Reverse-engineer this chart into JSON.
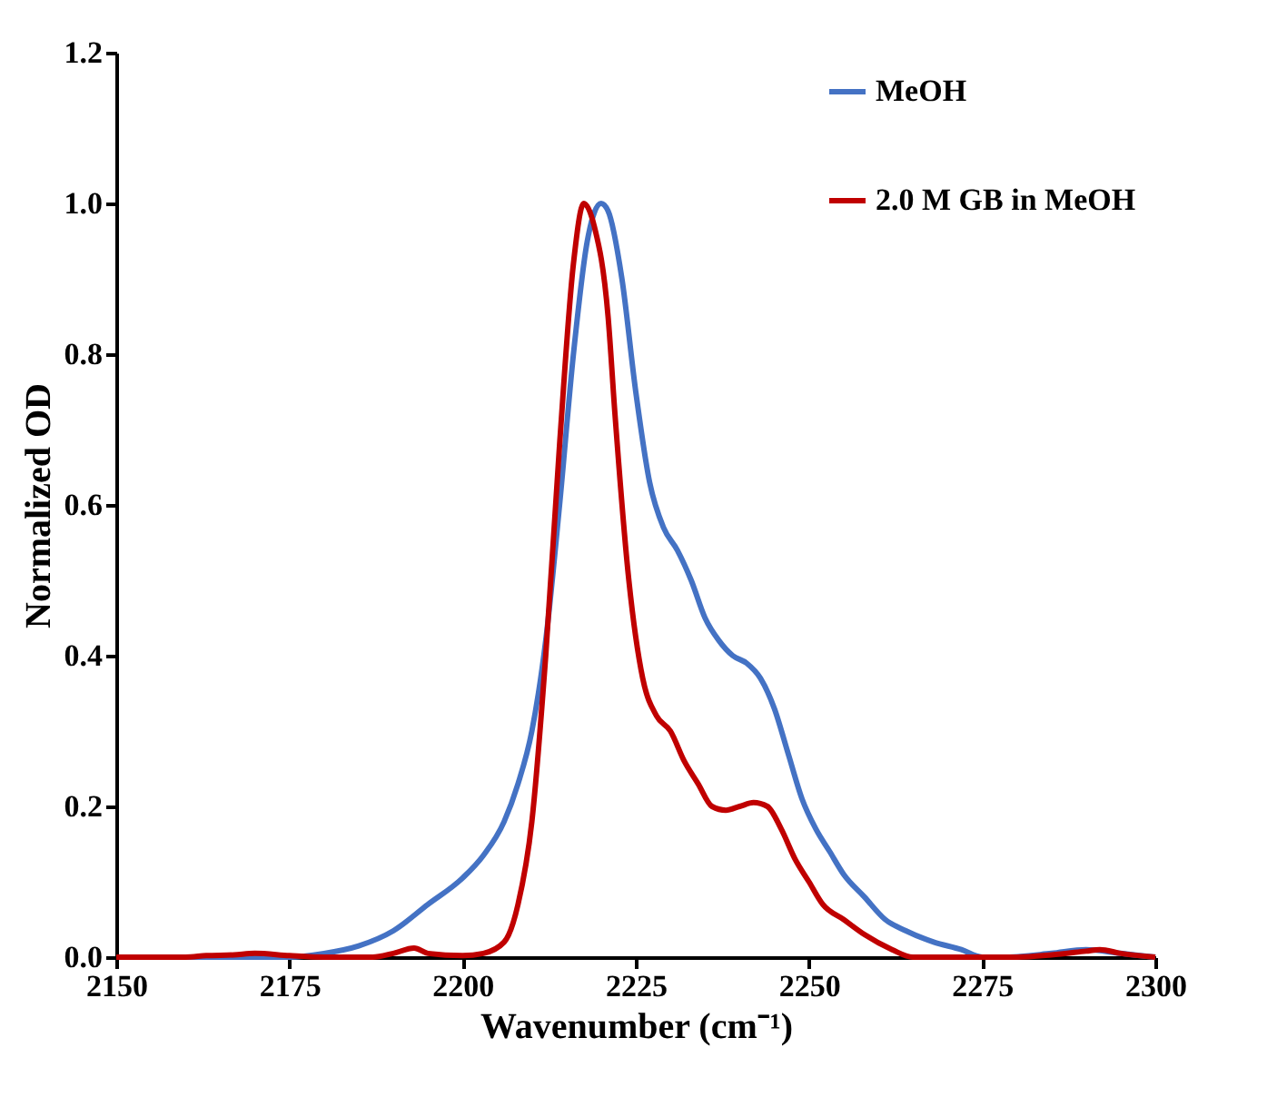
{
  "chart_data": {
    "type": "line",
    "xlabel": "Wavenumber (cm⁻¹)",
    "ylabel": "Normalized OD",
    "xlim": [
      2150,
      2300
    ],
    "xticks": [
      2150,
      2175,
      2200,
      2225,
      2250,
      2275,
      2300
    ],
    "ylim": [
      0,
      1.2
    ],
    "yticks": [
      {
        "value": 0,
        "label": "0.0"
      },
      0.2,
      0.4,
      0.6,
      0.8,
      {
        "value": 1,
        "label": "1.0"
      },
      1.2
    ],
    "grid": false,
    "legend": "top right",
    "line_style": "solid",
    "marker": "none",
    "series": [
      {
        "name": "MeOH",
        "color": "#4472c4",
        "x": [
          2150,
          2160,
          2170,
          2175,
          2180,
          2185,
          2190,
          2195,
          2200,
          2203,
          2206,
          2208,
          2210,
          2212,
          2214,
          2216,
          2218,
          2220,
          2221,
          2223,
          2225,
          2227,
          2229,
          2231,
          2233,
          2235,
          2237,
          2239,
          2241,
          2243,
          2245,
          2247,
          2249,
          2251,
          2253,
          2255,
          2258,
          2261,
          2264,
          2268,
          2272,
          2275,
          2278,
          2285,
          2290,
          2295,
          2300
        ],
        "values": [
          0,
          0,
          0,
          0,
          0.005,
          0.015,
          0.035,
          0.07,
          0.105,
          0.135,
          0.18,
          0.23,
          0.3,
          0.42,
          0.6,
          0.8,
          0.95,
          1.0,
          0.99,
          0.9,
          0.75,
          0.63,
          0.57,
          0.54,
          0.5,
          0.45,
          0.42,
          0.4,
          0.39,
          0.37,
          0.33,
          0.27,
          0.21,
          0.17,
          0.14,
          0.11,
          0.08,
          0.05,
          0.035,
          0.02,
          0.01,
          0,
          0,
          0.005,
          0.01,
          0.005,
          0
        ]
      },
      {
        "name": "2.0 M GB in MeOH",
        "color": "#c00000",
        "x": [
          2150,
          2160,
          2163,
          2167,
          2170,
          2175,
          2180,
          2187,
          2190,
          2193,
          2195,
          2200,
          2203,
          2206,
          2208,
          2210,
          2212,
          2214,
          2216,
          2217.5,
          2219,
          2221,
          2222,
          2224,
          2226,
          2228,
          2230,
          2232,
          2234,
          2236,
          2238,
          2240,
          2242,
          2244,
          2246,
          2248,
          2250,
          2252,
          2255,
          2258,
          2262,
          2265,
          2270,
          2280,
          2285,
          2290,
          2292,
          2295,
          2300
        ],
        "values": [
          0,
          0,
          0.002,
          0.003,
          0.005,
          0.002,
          0,
          0,
          0.005,
          0.012,
          0.005,
          0.002,
          0.005,
          0.02,
          0.07,
          0.18,
          0.4,
          0.68,
          0.92,
          1.0,
          0.97,
          0.85,
          0.72,
          0.5,
          0.37,
          0.32,
          0.3,
          0.26,
          0.23,
          0.2,
          0.195,
          0.2,
          0.205,
          0.2,
          0.17,
          0.13,
          0.1,
          0.07,
          0.05,
          0.03,
          0.01,
          0,
          0,
          0,
          0.003,
          0.008,
          0.01,
          0.005,
          0
        ]
      }
    ]
  }
}
